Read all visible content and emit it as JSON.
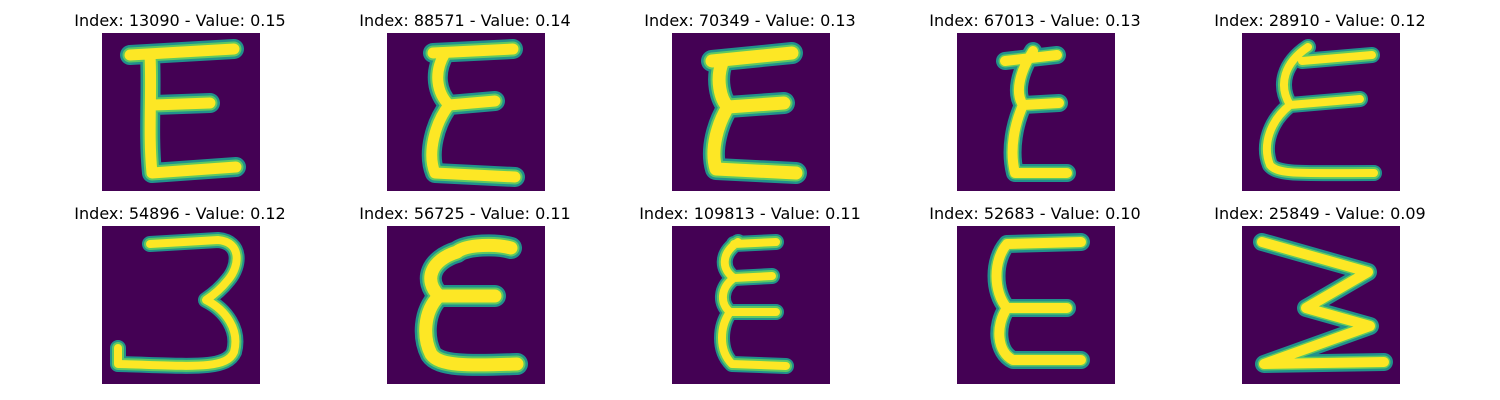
{
  "colors": {
    "background": "#440154",
    "stroke_outer": "#21918c",
    "stroke_mid": "#5ec962",
    "stroke_core": "#fde725"
  },
  "panels": [
    {
      "title": "Index: 13090 - Value: 0.15",
      "glyph": "E"
    },
    {
      "title": "Index: 88571 - Value: 0.14",
      "glyph": "ε"
    },
    {
      "title": "Index: 70349 - Value: 0.13",
      "glyph": "ε"
    },
    {
      "title": "Index: 67013 - Value: 0.13",
      "glyph": "ε"
    },
    {
      "title": "Index: 28910 - Value: 0.12",
      "glyph": "ε"
    },
    {
      "title": "Index: 54896 - Value: 0.12",
      "glyph": "3"
    },
    {
      "title": "Index: 56725 - Value: 0.11",
      "glyph": "ε"
    },
    {
      "title": "Index: 109813 - Value: 0.11",
      "glyph": "ε"
    },
    {
      "title": "Index: 52683 - Value: 0.10",
      "glyph": "E"
    },
    {
      "title": "Index: 25849 - Value: 0.09",
      "glyph": "Ʃ"
    }
  ]
}
